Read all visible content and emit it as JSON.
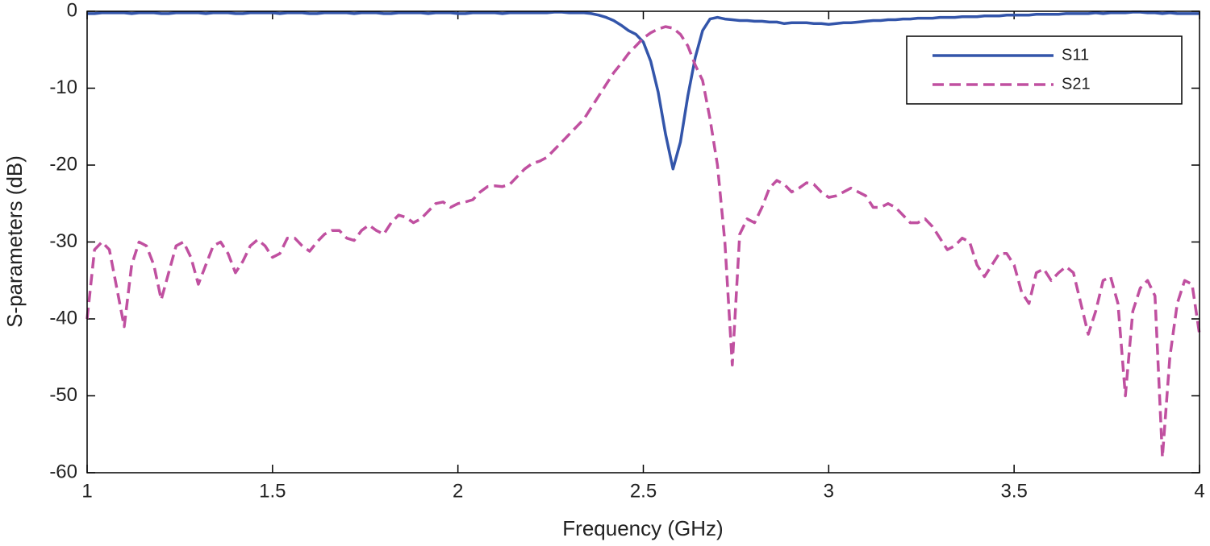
{
  "chart_data": {
    "type": "line",
    "xlabel": "Frequency (GHz)",
    "ylabel": "S-parameters (dB)",
    "x": [
      1.0,
      1.02,
      1.04,
      1.06,
      1.08,
      1.1,
      1.12,
      1.14,
      1.16,
      1.18,
      1.2,
      1.22,
      1.24,
      1.26,
      1.28,
      1.3,
      1.32,
      1.34,
      1.36,
      1.38,
      1.4,
      1.42,
      1.44,
      1.46,
      1.48,
      1.5,
      1.52,
      1.54,
      1.56,
      1.58,
      1.6,
      1.62,
      1.64,
      1.66,
      1.68,
      1.7,
      1.72,
      1.74,
      1.76,
      1.78,
      1.8,
      1.82,
      1.84,
      1.86,
      1.88,
      1.9,
      1.92,
      1.94,
      1.96,
      1.98,
      2.0,
      2.02,
      2.04,
      2.06,
      2.08,
      2.1,
      2.12,
      2.14,
      2.16,
      2.18,
      2.2,
      2.22,
      2.24,
      2.26,
      2.28,
      2.3,
      2.32,
      2.34,
      2.36,
      2.38,
      2.4,
      2.42,
      2.44,
      2.46,
      2.48,
      2.5,
      2.52,
      2.54,
      2.56,
      2.58,
      2.6,
      2.62,
      2.64,
      2.66,
      2.68,
      2.7,
      2.72,
      2.74,
      2.76,
      2.78,
      2.8,
      2.82,
      2.84,
      2.86,
      2.88,
      2.9,
      2.92,
      2.94,
      2.96,
      2.98,
      3.0,
      3.02,
      3.04,
      3.06,
      3.08,
      3.1,
      3.12,
      3.14,
      3.16,
      3.18,
      3.2,
      3.22,
      3.24,
      3.26,
      3.28,
      3.3,
      3.32,
      3.34,
      3.36,
      3.38,
      3.4,
      3.42,
      3.44,
      3.46,
      3.48,
      3.5,
      3.52,
      3.54,
      3.56,
      3.58,
      3.6,
      3.62,
      3.64,
      3.66,
      3.68,
      3.7,
      3.72,
      3.74,
      3.76,
      3.78,
      3.8,
      3.82,
      3.84,
      3.86,
      3.88,
      3.9,
      3.92,
      3.94,
      3.96,
      3.98,
      4.0
    ],
    "series": [
      {
        "name": "S11",
        "color": "#3355aa",
        "line_style": "solid",
        "values": [
          -0.3,
          -0.3,
          -0.2,
          -0.2,
          -0.2,
          -0.2,
          -0.3,
          -0.2,
          -0.2,
          -0.2,
          -0.3,
          -0.3,
          -0.2,
          -0.2,
          -0.2,
          -0.2,
          -0.3,
          -0.2,
          -0.2,
          -0.2,
          -0.3,
          -0.3,
          -0.2,
          -0.2,
          -0.2,
          -0.2,
          -0.3,
          -0.2,
          -0.2,
          -0.2,
          -0.3,
          -0.3,
          -0.2,
          -0.2,
          -0.2,
          -0.2,
          -0.3,
          -0.2,
          -0.2,
          -0.2,
          -0.3,
          -0.3,
          -0.2,
          -0.2,
          -0.2,
          -0.2,
          -0.3,
          -0.2,
          -0.2,
          -0.2,
          -0.3,
          -0.3,
          -0.2,
          -0.2,
          -0.2,
          -0.2,
          -0.3,
          -0.2,
          -0.2,
          -0.2,
          -0.2,
          -0.2,
          -0.2,
          -0.1,
          -0.1,
          -0.2,
          -0.2,
          -0.2,
          -0.3,
          -0.5,
          -0.8,
          -1.2,
          -1.8,
          -2.5,
          -3,
          -4,
          -6.5,
          -10.5,
          -16,
          -20.5,
          -17,
          -11,
          -6,
          -2.5,
          -1,
          -0.8,
          -1,
          -1.1,
          -1.2,
          -1.2,
          -1.3,
          -1.3,
          -1.4,
          -1.4,
          -1.6,
          -1.5,
          -1.5,
          -1.5,
          -1.6,
          -1.6,
          -1.7,
          -1.6,
          -1.5,
          -1.5,
          -1.4,
          -1.3,
          -1.2,
          -1.2,
          -1.1,
          -1.1,
          -1.0,
          -1.0,
          -0.9,
          -0.9,
          -0.9,
          -0.8,
          -0.8,
          -0.8,
          -0.7,
          -0.7,
          -0.7,
          -0.6,
          -0.6,
          -0.6,
          -0.5,
          -0.5,
          -0.5,
          -0.5,
          -0.4,
          -0.4,
          -0.4,
          -0.4,
          -0.3,
          -0.3,
          -0.3,
          -0.3,
          -0.2,
          -0.3,
          -0.2,
          -0.2,
          -0.2,
          -0.1,
          -0.1,
          -0.2,
          -0.2,
          -0.3,
          -0.2,
          -0.3,
          -0.3,
          -0.3,
          -0.3
        ]
      },
      {
        "name": "S21",
        "color": "#c050a0",
        "line_style": "dashed",
        "values": [
          -40,
          -31,
          -30,
          -31,
          -36,
          -41,
          -33,
          -30,
          -30.5,
          -33,
          -37.5,
          -34,
          -30.5,
          -30,
          -32,
          -35.5,
          -33,
          -30.5,
          -30,
          -31.5,
          -34,
          -32.5,
          -30.5,
          -29.7,
          -30.5,
          -32,
          -31.5,
          -29.5,
          -29.5,
          -30.5,
          -31.2,
          -30,
          -29,
          -28.5,
          -28.5,
          -29.5,
          -29.8,
          -28.5,
          -27.8,
          -28.5,
          -29,
          -27.5,
          -26.5,
          -26.8,
          -27.5,
          -27,
          -26,
          -25,
          -24.8,
          -25.5,
          -25,
          -24.8,
          -24.5,
          -23.5,
          -22.8,
          -22.7,
          -22.8,
          -22.5,
          -21.5,
          -20.5,
          -19.8,
          -19.5,
          -19,
          -18,
          -17,
          -16,
          -15,
          -14,
          -12.5,
          -11,
          -9.5,
          -8,
          -6.8,
          -5.5,
          -4.5,
          -3.5,
          -2.8,
          -2.3,
          -2,
          -2.2,
          -3,
          -4.5,
          -7,
          -9,
          -14,
          -20,
          -30,
          -46,
          -29,
          -27,
          -27.5,
          -25.5,
          -23,
          -22,
          -22.5,
          -23.5,
          -23,
          -22.3,
          -22.5,
          -23.5,
          -24.2,
          -24,
          -23.5,
          -23,
          -23.5,
          -24,
          -25.5,
          -25.5,
          -25,
          -25.5,
          -26.5,
          -27.5,
          -27.5,
          -27,
          -28,
          -29.5,
          -31,
          -30.5,
          -29.5,
          -30,
          -33,
          -34.5,
          -33,
          -31.5,
          -31.5,
          -33,
          -36.5,
          -38,
          -34,
          -33.5,
          -35,
          -34,
          -33.2,
          -34,
          -38,
          -42,
          -39,
          -35,
          -34.5,
          -38,
          -50,
          -39,
          -36,
          -35,
          -37,
          -58,
          -45,
          -38,
          -35,
          -35.5,
          -42
        ]
      }
    ],
    "xlim": [
      1,
      4
    ],
    "xticks": [
      1,
      1.5,
      2,
      2.5,
      3,
      3.5,
      4
    ],
    "ylim": [
      -60,
      0
    ],
    "yticks": [
      -60,
      -50,
      -40,
      -30,
      -20,
      -10,
      0
    ],
    "grid": false,
    "legend": "upper right"
  }
}
